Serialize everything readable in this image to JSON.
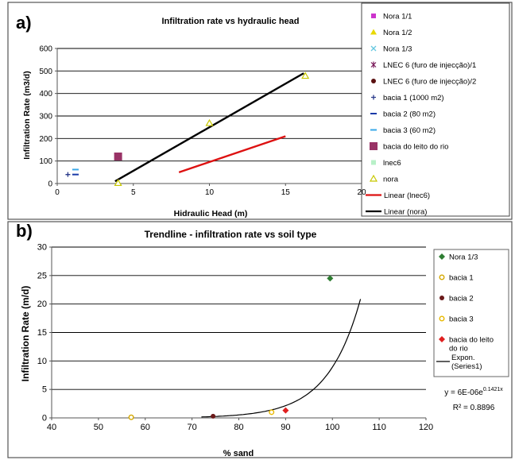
{
  "chart_data": [
    {
      "panel_label": "a)",
      "type": "scatter",
      "title": "Infiltration rate vs hydraulic head",
      "xlabel": "Hidraulic Head (m)",
      "ylabel": "Infiltration Rate (m3/d)",
      "xlim": [
        0,
        20
      ],
      "ylim": [
        0,
        600
      ],
      "xticks": [
        "0",
        "5",
        "10",
        "15",
        "20"
      ],
      "yticks": [
        "0",
        "100",
        "200",
        "300",
        "400",
        "500",
        "600"
      ],
      "grid": "horizontal",
      "legend_position": "right",
      "series": [
        {
          "name": "Nora 1/1",
          "color": "#cc33cc",
          "marker": "square",
          "points": []
        },
        {
          "name": "Nora 1/2",
          "color": "#e8d800",
          "marker": "triangle",
          "points": []
        },
        {
          "name": "Nora 1/3",
          "color": "#66c8e0",
          "marker": "x",
          "points": []
        },
        {
          "name": "LNEC 6 (furo de injecção)/1",
          "color": "#7a1a5a",
          "marker": "star",
          "points": []
        },
        {
          "name": "LNEC 6 (furo de injecção)/2",
          "color": "#5a1010",
          "marker": "circle",
          "points": []
        },
        {
          "name": "bacia 1 (1000 m2)",
          "color": "#2a3a8a",
          "marker": "plus",
          "points": [
            [
              0.7,
              40
            ]
          ]
        },
        {
          "name": "bacia 2 (80 m2)",
          "color": "#1a3aa8",
          "marker": "dash",
          "points": [
            [
              1.2,
              40
            ]
          ]
        },
        {
          "name": "bacia 3 (60 m2)",
          "color": "#3aa8e8",
          "marker": "dash",
          "points": [
            [
              1.2,
              62
            ]
          ]
        },
        {
          "name": "bacia do leito do rio",
          "color": "#993366",
          "marker": "bigsquare",
          "points": [
            [
              4.0,
              120
            ]
          ]
        },
        {
          "name": "lnec6",
          "color": "#b8f0c8",
          "marker": "square",
          "points": []
        },
        {
          "name": "nora",
          "color": "#c8c800",
          "marker": "triangle-open",
          "points": [
            [
              4.0,
              2
            ],
            [
              10.0,
              268
            ],
            [
              16.3,
              478
            ]
          ]
        }
      ],
      "trendlines": [
        {
          "name": "Linear (lnec6)",
          "color": "#dd1111",
          "x": [
            8,
            15
          ],
          "y": [
            50,
            210
          ]
        },
        {
          "name": "Linear (nora)",
          "color": "#000000",
          "x": [
            3.8,
            16.2
          ],
          "y": [
            10,
            490
          ]
        }
      ]
    },
    {
      "panel_label": "b)",
      "type": "scatter",
      "title": "Trendline - infiltration rate vs soil type",
      "xlabel": "% sand",
      "ylabel": "Infiltration Rate (m/d)",
      "xlim": [
        40,
        120
      ],
      "ylim": [
        0,
        30
      ],
      "xticks": [
        "40",
        "50",
        "60",
        "70",
        "80",
        "90",
        "100",
        "110",
        "120"
      ],
      "yticks": [
        "0",
        "5",
        "10",
        "15",
        "20",
        "25",
        "30"
      ],
      "grid": "horizontal",
      "legend_position": "right",
      "series": [
        {
          "name": "Nora 1/3",
          "color": "#2e7d32",
          "marker": "diamond",
          "points": [
            [
              99.5,
              24.5
            ]
          ]
        },
        {
          "name": "bacia 1",
          "color": "#d4a800",
          "marker": "circle-open",
          "points": [
            [
              57,
              0.1
            ]
          ]
        },
        {
          "name": "bacia 2",
          "color": "#6b1a1a",
          "marker": "circle",
          "points": [
            [
              74.5,
              0.3
            ]
          ]
        },
        {
          "name": "bacia 3",
          "color": "#e8b800",
          "marker": "circle-open",
          "points": [
            [
              87,
              1.0
            ]
          ]
        },
        {
          "name": "bacia do leito do rio",
          "color": "#e02020",
          "marker": "diamond",
          "points": [
            [
              90,
              1.3
            ]
          ]
        }
      ],
      "trendline": {
        "name": "Expon. (Series1)",
        "color": "#000000",
        "equation": "y = 6E-06e",
        "equation_exponent": "0.1421x",
        "r2": "R² = 0.8896",
        "x_range": [
          72,
          106
        ],
        "model": {
          "a": 6e-06,
          "b": 0.1421
        }
      }
    }
  ]
}
